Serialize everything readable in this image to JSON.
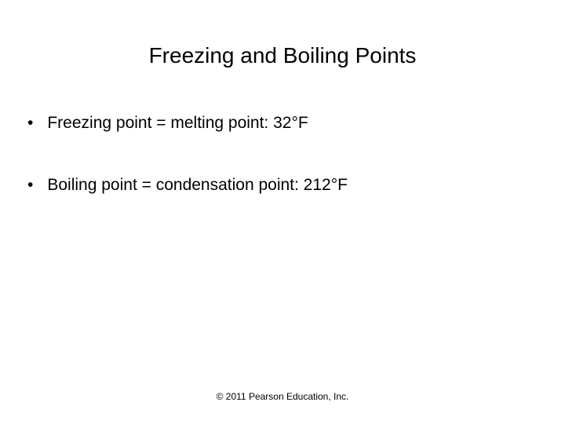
{
  "slide": {
    "title": "Freezing and Boiling Points",
    "title_fontsize": 28,
    "title_color": "#000000",
    "bullets": [
      {
        "marker": "•",
        "text": "Freezing point = melting point: 32°F"
      },
      {
        "marker": "•",
        "text": "Boiling point = condensation point: 212°F"
      }
    ],
    "bullet_fontsize": 21,
    "bullet_color": "#000000",
    "footer": "© 2011 Pearson Education, Inc.",
    "footer_fontsize": 12,
    "footer_color": "#000000",
    "background_color": "#ffffff"
  }
}
